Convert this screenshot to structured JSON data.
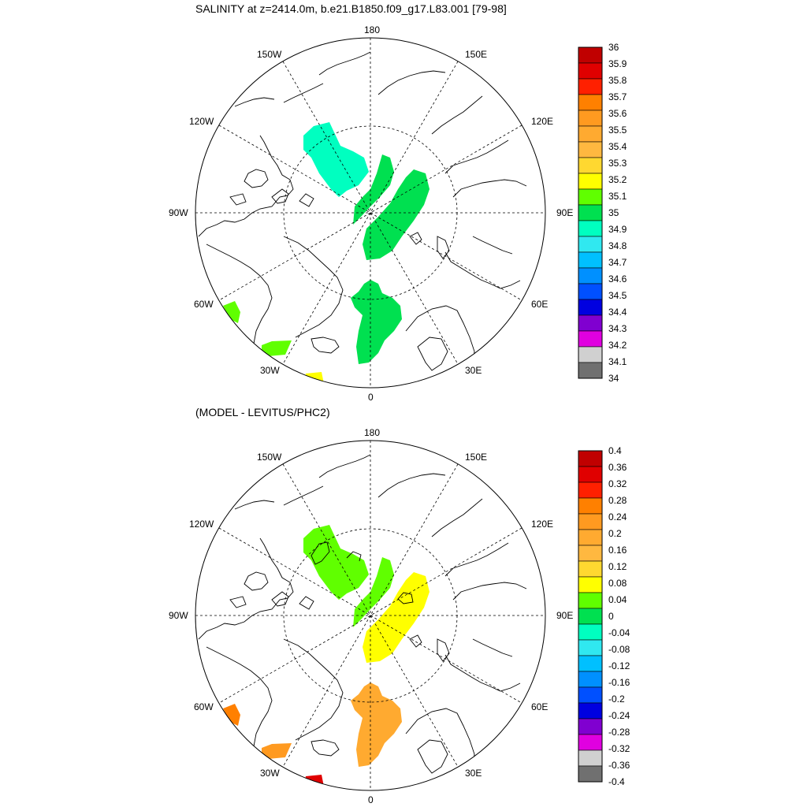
{
  "panels": [
    {
      "id": "top",
      "title": "SALINITY at z=2414.0m, b.e21.B1850.f09_g17.L83.001 [79-98]",
      "colorbar": {
        "labels": [
          "36",
          "35.9",
          "35.8",
          "35.7",
          "35.6",
          "35.5",
          "35.4",
          "35.3",
          "35.2",
          "35.1",
          "35",
          "34.9",
          "34.8",
          "34.7",
          "34.6",
          "34.5",
          "34.4",
          "34.3",
          "34.2",
          "34.1",
          "34"
        ],
        "colors": [
          "#c00000",
          "#e00000",
          "#ff2000",
          "#ff8000",
          "#ff9a20",
          "#ffaa30",
          "#ffb840",
          "#ffd830",
          "#ffff00",
          "#60ff00",
          "#00e050",
          "#00ffc0",
          "#30e8f0",
          "#00c0ff",
          "#0090ff",
          "#0050ff",
          "#0000e0",
          "#8000d0",
          "#e000e0",
          "#d0d0d0",
          "#707070"
        ]
      },
      "regions": [
        {
          "name": "beaufort-patch",
          "value": 34.9,
          "color": "#00ffc0"
        },
        {
          "name": "lomonosov-ridge-patch",
          "value": 35.05,
          "color": "#00e050"
        },
        {
          "name": "eurasian-basin-patch",
          "value": 35.05,
          "color": "#00e050"
        },
        {
          "name": "nordic-seas-patch",
          "value": 35.05,
          "color": "#00e050"
        },
        {
          "name": "labrador-patch",
          "value": 35.15,
          "color": "#60ff00"
        },
        {
          "name": "irminger-patch",
          "value": 35.15,
          "color": "#60ff00"
        },
        {
          "name": "north-atlantic-patch",
          "value": 35.3,
          "color": "#ffff00"
        }
      ]
    },
    {
      "id": "bottom",
      "title": "(MODEL - LEVITUS/PHC2)",
      "colorbar": {
        "labels": [
          "0.4",
          "0.36",
          "0.32",
          "0.28",
          "0.24",
          "0.2",
          "0.16",
          "0.12",
          "0.08",
          "0.04",
          "0",
          "-0.04",
          "-0.08",
          "-0.12",
          "-0.16",
          "-0.2",
          "-0.24",
          "-0.28",
          "-0.32",
          "-0.36",
          "-0.4"
        ],
        "colors": [
          "#c00000",
          "#e00000",
          "#ff2000",
          "#ff8000",
          "#ff9a20",
          "#ffaa30",
          "#ffb840",
          "#ffd830",
          "#ffff00",
          "#60ff00",
          "#00e050",
          "#00ffc0",
          "#30e8f0",
          "#00c0ff",
          "#0090ff",
          "#0050ff",
          "#0000e0",
          "#8000d0",
          "#e000e0",
          "#d0d0d0",
          "#707070"
        ]
      },
      "regions": [
        {
          "name": "beaufort-patch",
          "value": 0.06,
          "color": "#60ff00"
        },
        {
          "name": "lomonosov-ridge-patch",
          "value": 0.06,
          "color": "#60ff00"
        },
        {
          "name": "eurasian-basin-patch",
          "value": 0.1,
          "color": "#ffff00"
        },
        {
          "name": "nordic-seas-patch",
          "value": 0.18,
          "color": "#ffaa30"
        },
        {
          "name": "labrador-patch",
          "value": 0.26,
          "color": "#ff8000"
        },
        {
          "name": "irminger-patch",
          "value": 0.22,
          "color": "#ff9a20"
        },
        {
          "name": "north-atlantic-patch",
          "value": 0.34,
          "color": "#e00000"
        }
      ]
    }
  ],
  "meridian_labels": [
    "180",
    "150E",
    "120E",
    "90E",
    "60E",
    "30E",
    "0",
    "30W",
    "60W",
    "90W",
    "120W",
    "150W"
  ]
}
